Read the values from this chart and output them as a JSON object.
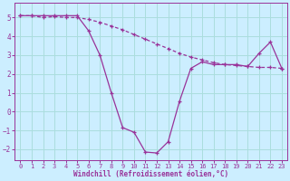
{
  "xlabel": "Windchill (Refroidissement éolien,°C)",
  "ylabel": "",
  "background_color": "#cceeff",
  "line_color": "#993399",
  "grid_color": "#aadddd",
  "x_values": [
    0,
    1,
    2,
    3,
    4,
    5,
    6,
    7,
    8,
    9,
    10,
    11,
    12,
    13,
    14,
    15,
    16,
    17,
    18,
    19,
    20,
    21,
    22,
    23
  ],
  "curve1_y": [
    5.1,
    5.1,
    5.1,
    5.1,
    5.1,
    5.1,
    4.3,
    3.0,
    1.0,
    -0.85,
    -1.1,
    -2.15,
    -2.2,
    -1.6,
    0.55,
    2.3,
    2.65,
    2.5,
    2.5,
    2.5,
    2.4,
    3.1,
    3.7,
    2.3
  ],
  "curve2_y": [
    5.1,
    5.1,
    5.0,
    5.05,
    5.0,
    5.0,
    4.9,
    4.75,
    4.55,
    4.35,
    4.1,
    3.85,
    3.6,
    3.35,
    3.1,
    2.9,
    2.75,
    2.6,
    2.5,
    2.45,
    2.4,
    2.35,
    2.35,
    2.3
  ],
  "ylim": [
    -2.6,
    5.8
  ],
  "xlim": [
    -0.5,
    23.5
  ],
  "yticks": [
    -2,
    -1,
    0,
    1,
    2,
    3,
    4,
    5
  ],
  "xticks": [
    0,
    1,
    2,
    3,
    4,
    5,
    6,
    7,
    8,
    9,
    10,
    11,
    12,
    13,
    14,
    15,
    16,
    17,
    18,
    19,
    20,
    21,
    22,
    23
  ]
}
